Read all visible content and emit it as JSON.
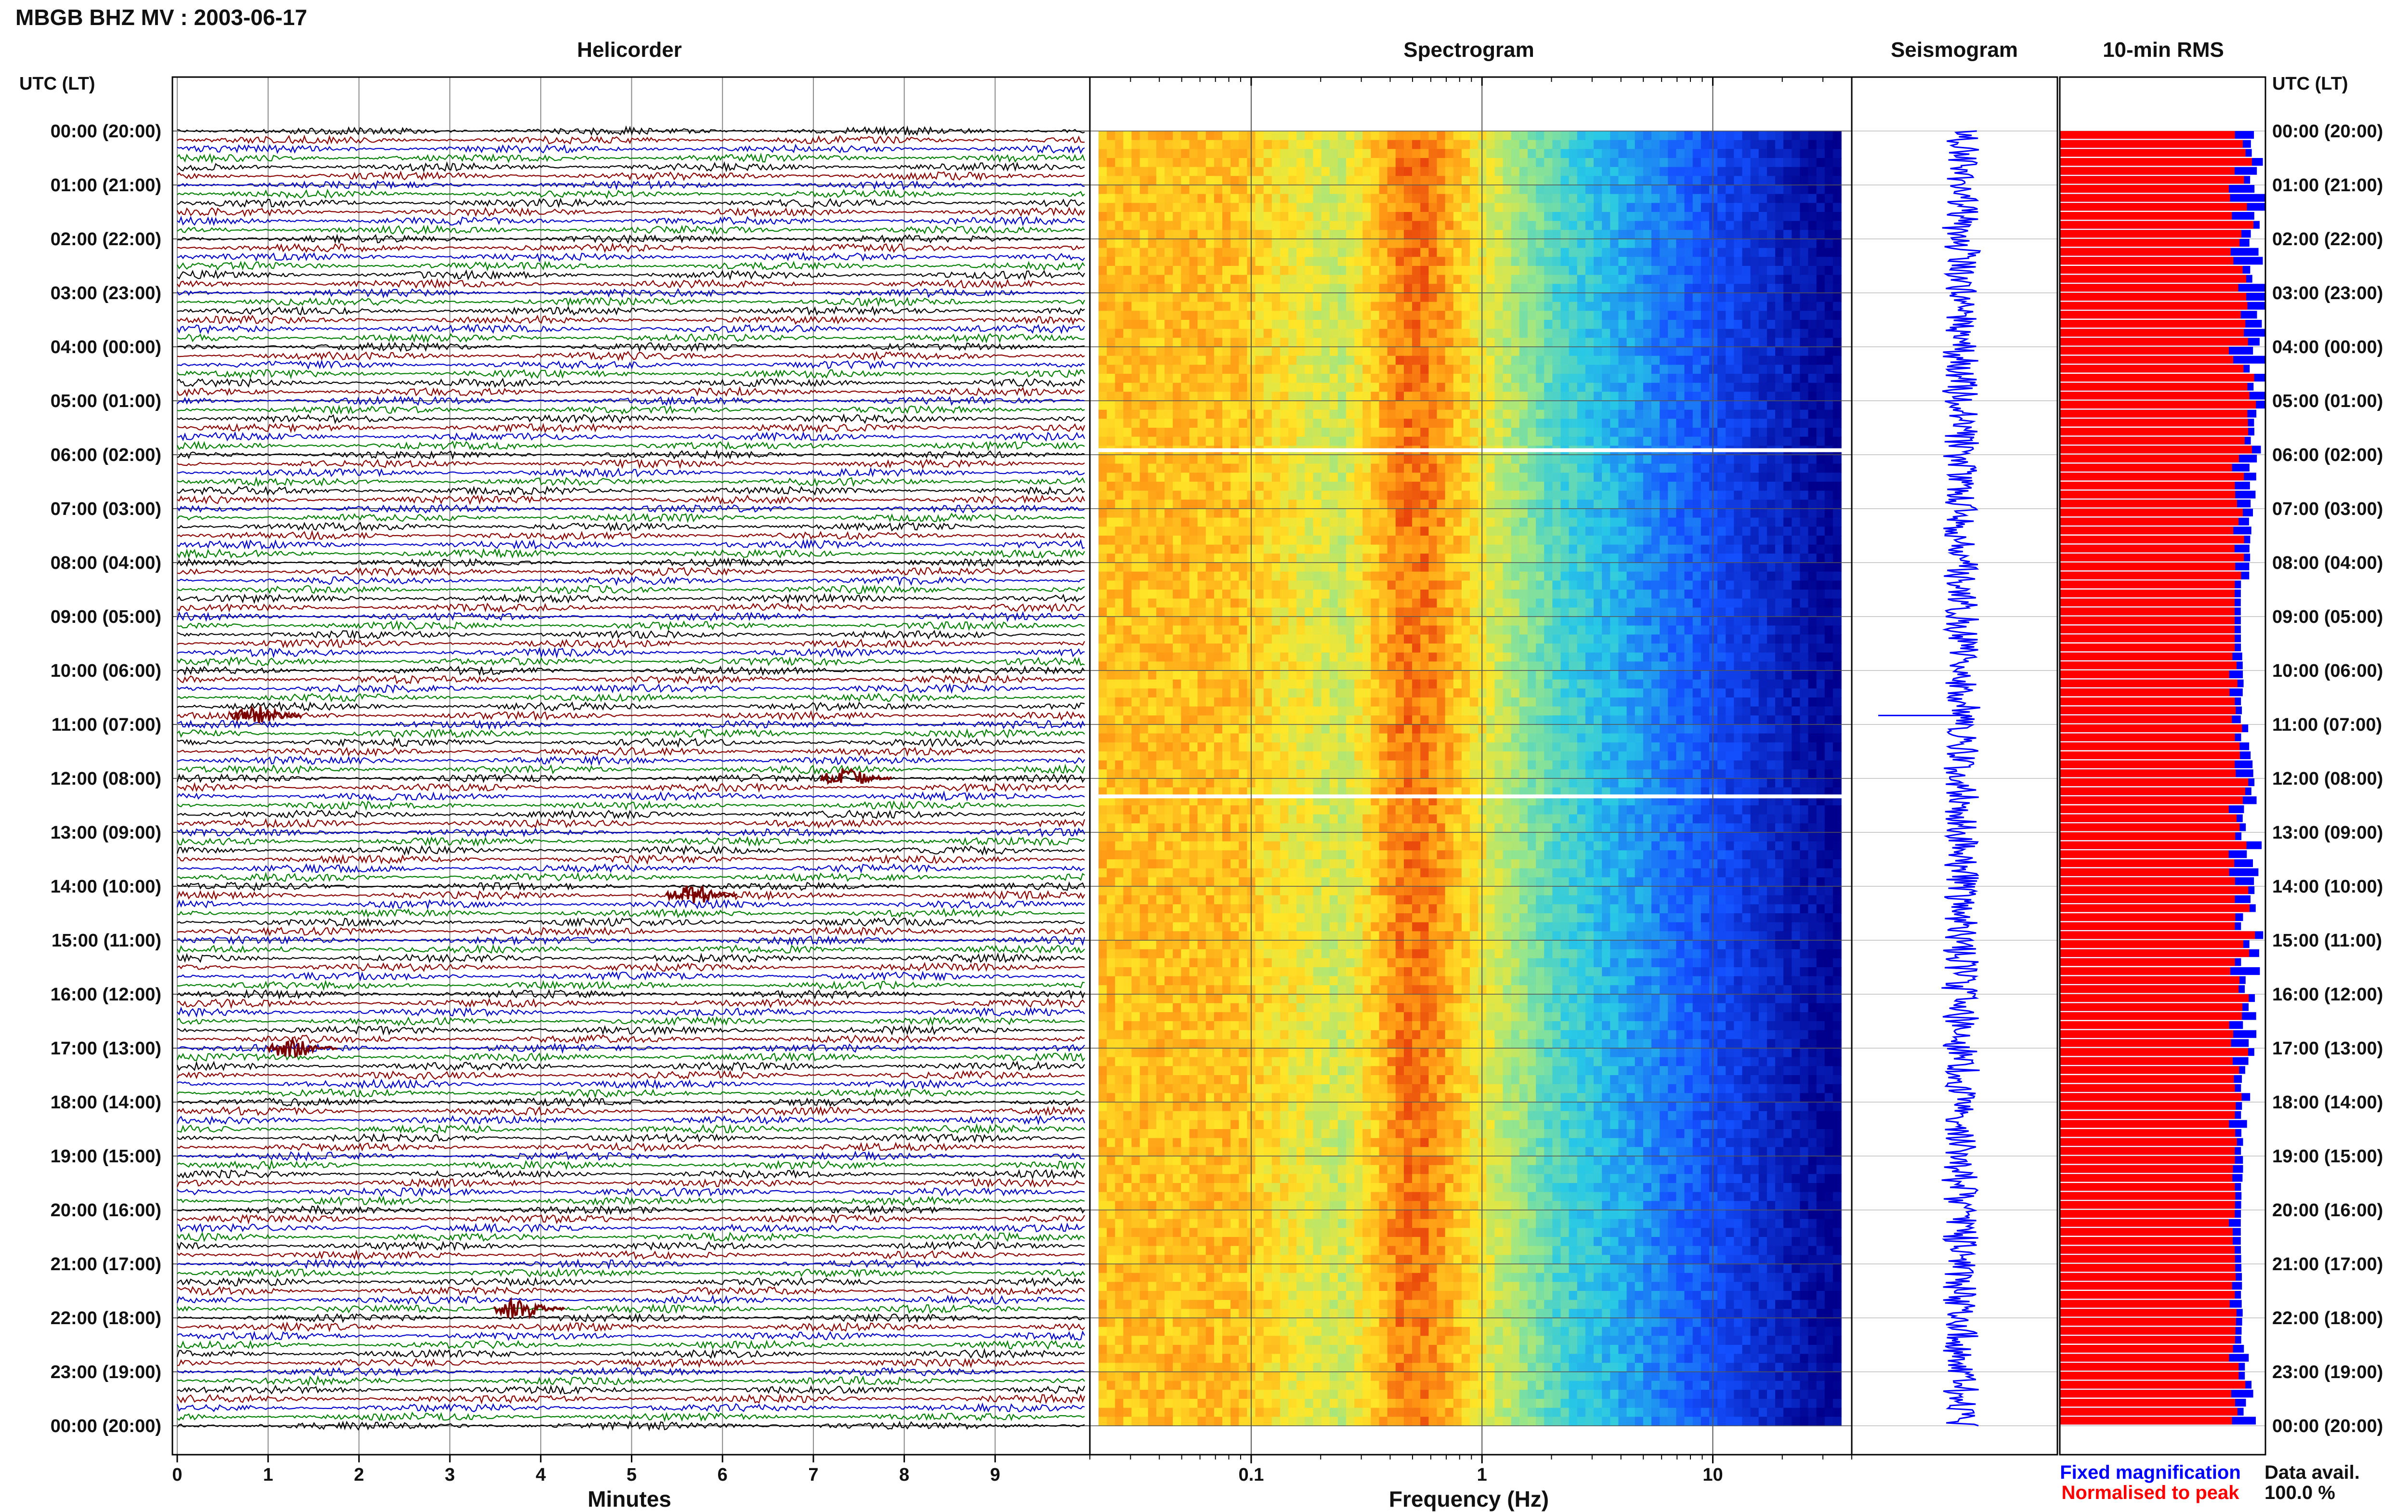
{
  "title": "MBGB BHZ MV : 2003-06-17",
  "axis_header_left": "UTC (LT)",
  "axis_header_right": "UTC (LT)",
  "panels": {
    "helicorder": "Helicorder",
    "spectrogram": "Spectrogram",
    "seismogram": "Seismogram",
    "rms": "10-min RMS"
  },
  "xlabels": {
    "helicorder": "Minutes",
    "spectrogram": "Frequency (Hz)"
  },
  "legend": {
    "fixed": "Fixed magnification",
    "normalised": "Normalised to peak",
    "fixed_color": "#0000ff",
    "normalised_color": "#ff0000"
  },
  "data_avail": {
    "label": "Data avail.",
    "value": "100.0 %"
  },
  "colors": {
    "trace_cycle": [
      "#000000",
      "#8b0000",
      "#0000cd",
      "#008000"
    ]
  },
  "chart_data": [
    {
      "type": "line",
      "panel": "helicorder",
      "xlabel": "Minutes",
      "x_ticks": [
        "0",
        "1",
        "2",
        "3",
        "4",
        "5",
        "6",
        "7",
        "8",
        "9"
      ],
      "xlim": [
        0,
        10
      ],
      "rows": 144,
      "row_minutes": 10,
      "y_ticks": [
        "00:00 (20:00)",
        "01:00 (21:00)",
        "02:00 (22:00)",
        "03:00 (23:00)",
        "04:00 (00:00)",
        "05:00 (01:00)",
        "06:00 (02:00)",
        "07:00 (03:00)",
        "08:00 (04:00)",
        "09:00 (05:00)",
        "10:00 (06:00)",
        "11:00 (07:00)",
        "12:00 (08:00)",
        "13:00 (09:00)",
        "14:00 (10:00)",
        "15:00 (11:00)",
        "16:00 (12:00)",
        "17:00 (13:00)",
        "18:00 (14:00)",
        "19:00 (15:00)",
        "20:00 (16:00)",
        "21:00 (17:00)",
        "22:00 (18:00)",
        "23:00 (19:00)",
        "00:00 (20:00)"
      ],
      "events": [
        {
          "utc": "10:50",
          "minute": 0.9
        },
        {
          "utc": "17:00",
          "minute": 1.3
        },
        {
          "utc": "14:10",
          "minute": 5.7
        },
        {
          "utc": "12:00",
          "minute": 7.4
        },
        {
          "utc": "21:50",
          "minute": 3.8
        }
      ]
    },
    {
      "type": "heatmap",
      "panel": "spectrogram",
      "xlabel": "Frequency (Hz)",
      "x_scale": "log",
      "xlim": [
        0.02,
        40
      ],
      "x_ticks": [
        "0.1",
        "1",
        "10"
      ],
      "gaps_utc": [
        "05:55",
        "12:20"
      ]
    },
    {
      "type": "line",
      "panel": "seismogram",
      "event_utc": "10:50"
    },
    {
      "type": "bar",
      "panel": "rms",
      "orientation": "horizontal",
      "bins": 144,
      "bin_minutes": 10,
      "normalised_fraction_range": [
        0.76,
        0.96
      ],
      "fixed_fraction_range": [
        0.8,
        1.0
      ]
    }
  ]
}
